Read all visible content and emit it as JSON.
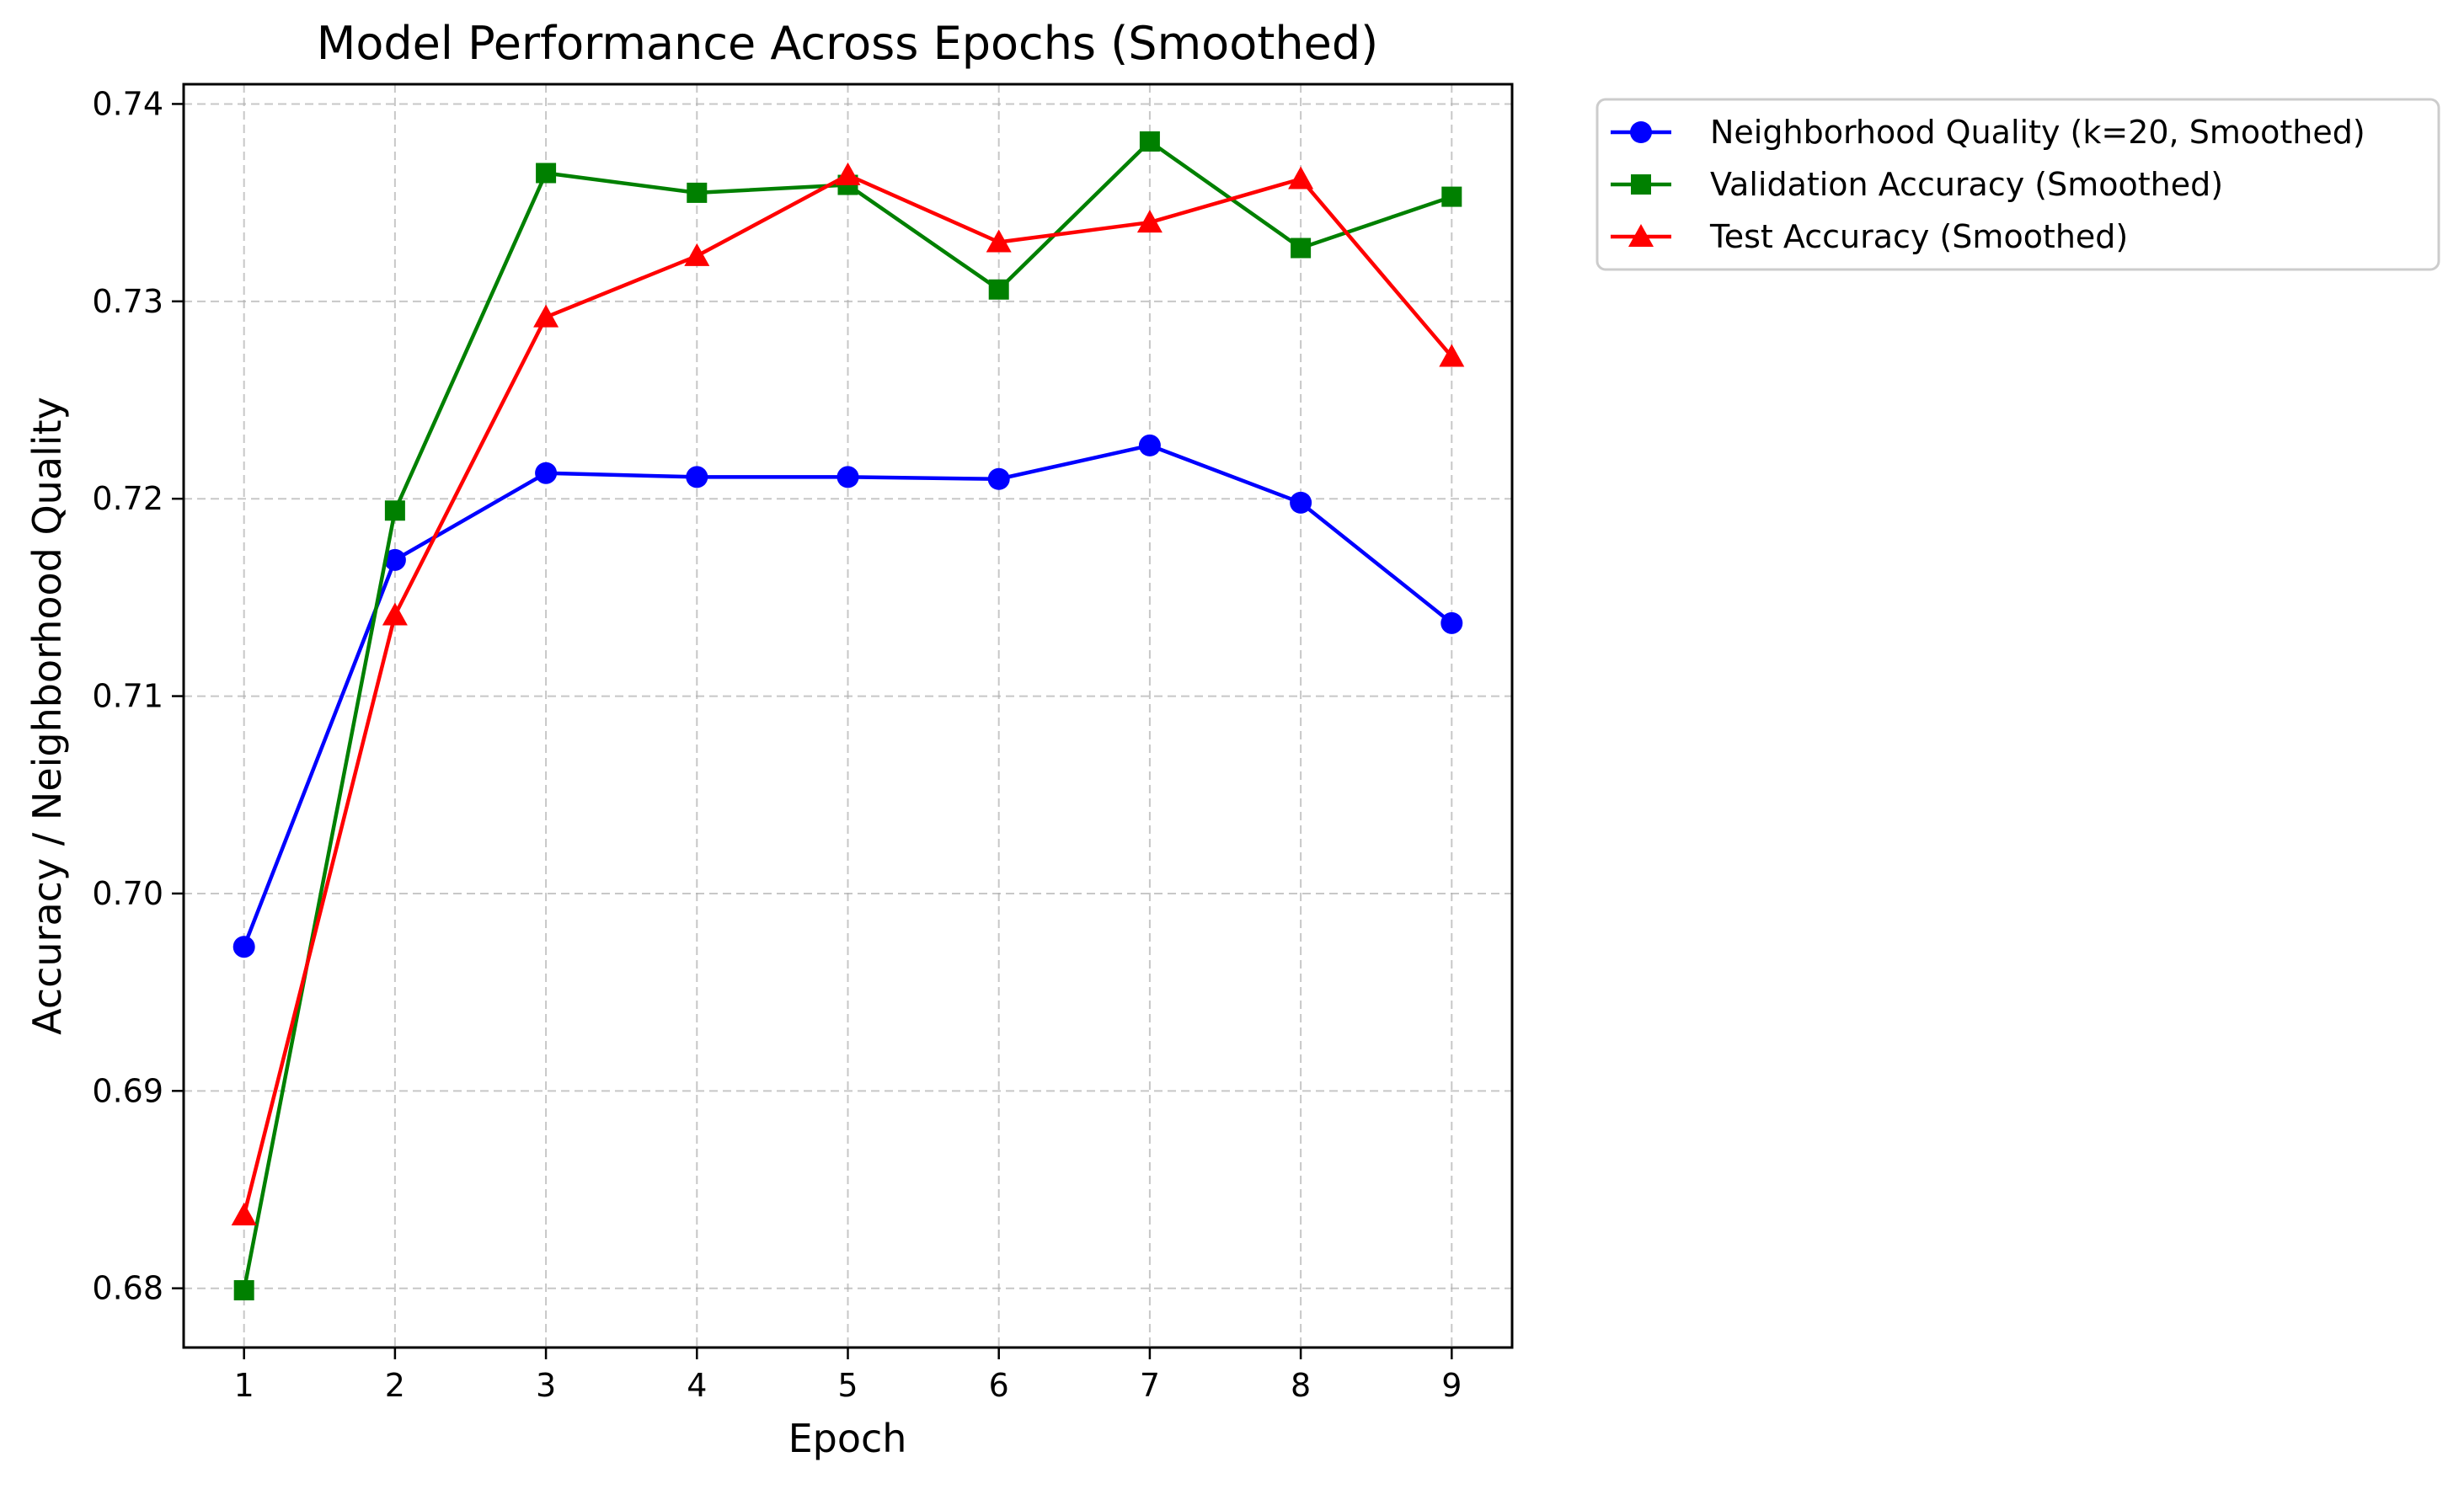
{
  "chart_data": {
    "type": "line",
    "title": "Model Performance Across Epochs (Smoothed)",
    "xlabel": "Epoch",
    "ylabel": "Accuracy / Neighborhood Quality",
    "x": [
      1,
      2,
      3,
      4,
      5,
      6,
      7,
      8,
      9
    ],
    "xlim": [
      0.6,
      9.4
    ],
    "ylim": [
      0.677,
      0.741
    ],
    "xticks": [
      "1",
      "2",
      "3",
      "4",
      "5",
      "6",
      "7",
      "8",
      "9"
    ],
    "yticks": [
      "0.68",
      "0.69",
      "0.70",
      "0.71",
      "0.72",
      "0.73",
      "0.74"
    ],
    "ytick_values": [
      0.68,
      0.69,
      0.7,
      0.71,
      0.72,
      0.73,
      0.74
    ],
    "grid": true,
    "legend_position": "outside-top-right",
    "series": [
      {
        "name": "Neighborhood Quality (k=20, Smoothed)",
        "color": "#0000ff",
        "marker": "circle",
        "values": [
          0.6973,
          0.7169,
          0.7213,
          0.7211,
          0.7211,
          0.721,
          0.7227,
          0.7198,
          0.7137
        ]
      },
      {
        "name": "Validation Accuracy (Smoothed)",
        "color": "#008000",
        "marker": "square",
        "values": [
          0.6799,
          0.7194,
          0.7365,
          0.7355,
          0.7359,
          0.7306,
          0.7381,
          0.7327,
          0.7353
        ]
      },
      {
        "name": "Test Accuracy (Smoothed)",
        "color": "#ff0000",
        "marker": "triangle",
        "values": [
          0.6837,
          0.7141,
          0.7292,
          0.7323,
          0.7364,
          0.733,
          0.734,
          0.7362,
          0.7272
        ]
      }
    ]
  }
}
